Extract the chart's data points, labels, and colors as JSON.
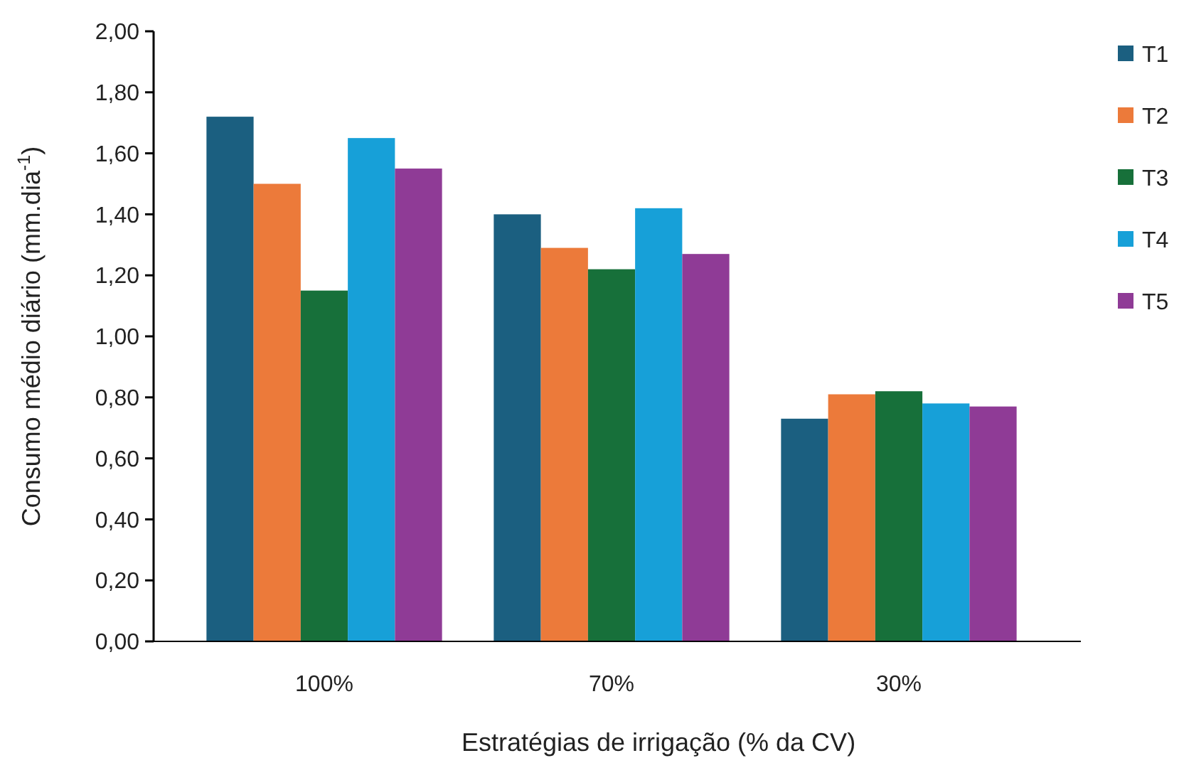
{
  "chart_data": {
    "type": "bar",
    "xlabel": "Estratégias de irrigação (% da CV)",
    "ylabel": "Consumo médio diário (mm.dia$^{-1}$)",
    "categories": [
      "100%",
      "70%",
      "30%"
    ],
    "series": [
      {
        "name": "T1",
        "color": "#1b5f80",
        "values": [
          1.72,
          1.4,
          0.73
        ]
      },
      {
        "name": "T2",
        "color": "#ec7a3a",
        "values": [
          1.5,
          1.29,
          0.81
        ]
      },
      {
        "name": "T3",
        "color": "#17703a",
        "values": [
          1.15,
          1.22,
          0.82
        ]
      },
      {
        "name": "T4",
        "color": "#17a0d8",
        "values": [
          1.65,
          1.42,
          0.78
        ]
      },
      {
        "name": "T5",
        "color": "#8f3b96",
        "values": [
          1.55,
          1.27,
          0.77
        ]
      }
    ],
    "ylim": [
      0,
      2
    ],
    "yticks": [
      {
        "value": 0,
        "label": "0,00"
      },
      {
        "value": 0.2,
        "label": "0,20"
      },
      {
        "value": 0.4,
        "label": "0,40"
      },
      {
        "value": 0.6,
        "label": "0,60"
      },
      {
        "value": 0.8,
        "label": "0,80"
      },
      {
        "value": 1,
        "label": "1,00"
      },
      {
        "value": 1.2,
        "label": "1,20"
      },
      {
        "value": 1.4,
        "label": "1,40"
      },
      {
        "value": 1.6,
        "label": "1,60"
      },
      {
        "value": 1.8,
        "label": "1,80"
      },
      {
        "value": 2,
        "label": "2,00"
      }
    ],
    "legend": "right"
  }
}
